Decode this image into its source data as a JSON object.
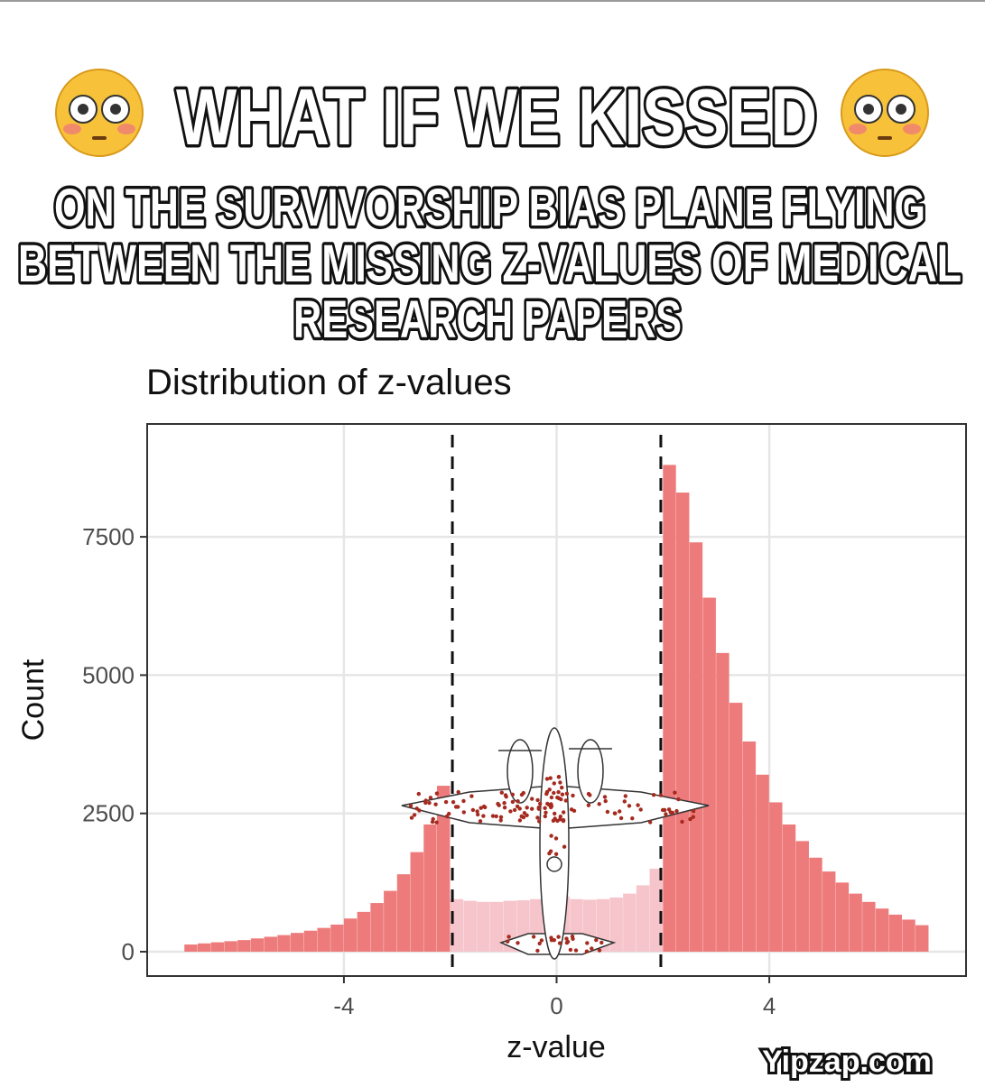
{
  "header": {
    "lines": [
      "WHAT IF WE KISSED",
      "ON THE SURVIVORSHIP BIAS PLANE FLYING",
      "BETWEEN THE MISSING Z-VALUES OF MEDICAL",
      "RESEARCH PAPERS"
    ]
  },
  "chart_data": {
    "type": "histogram",
    "title": "Distribution of z-values",
    "x_label": "z-value",
    "y_label": "Count",
    "bins": [
      -7,
      -6.75,
      -6.5,
      -6.25,
      -6,
      -5.75,
      -5.5,
      -5.25,
      -5,
      -4.75,
      -4.5,
      -4.25,
      -4,
      -3.75,
      -3.5,
      -3.25,
      -3,
      -2.75,
      -2.5,
      -2.25,
      -2,
      -1.75,
      -1.5,
      -1.25,
      -1,
      -0.75,
      -0.5,
      -0.25,
      0,
      0.25,
      0.5,
      0.75,
      1,
      1.25,
      1.5,
      1.75,
      2,
      2.25,
      2.5,
      2.75,
      3,
      3.25,
      3.5,
      3.75,
      4,
      4.25,
      4.5,
      4.75,
      5,
      5.25,
      5.5,
      5.75,
      6,
      6.25,
      6.5,
      6.75,
      7
    ],
    "values": [
      130,
      150,
      170,
      190,
      210,
      240,
      270,
      300,
      340,
      380,
      430,
      490,
      600,
      720,
      880,
      1100,
      1400,
      1800,
      2300,
      3000,
      950,
      920,
      900,
      900,
      920,
      930,
      950,
      1000,
      1000,
      950,
      940,
      950,
      980,
      1050,
      1200,
      1500,
      8800,
      8300,
      7400,
      6400,
      5400,
      4500,
      3800,
      3200,
      2700,
      2300,
      2000,
      1700,
      1450,
      1250,
      1050,
      900,
      780,
      670,
      580,
      480
    ],
    "color": "#ee7b7b",
    "inner_color": "#f6c4cb",
    "reference_lines": [
      -1.96,
      1.96
    ],
    "xlim": [
      -7.7,
      7.7
    ],
    "ylim": [
      -440,
      9540
    ],
    "xticks": [
      -4,
      0,
      4
    ],
    "yticks": [
      0,
      2500,
      5000,
      7500
    ],
    "grid": true
  },
  "watermark": "Yipzap.com"
}
